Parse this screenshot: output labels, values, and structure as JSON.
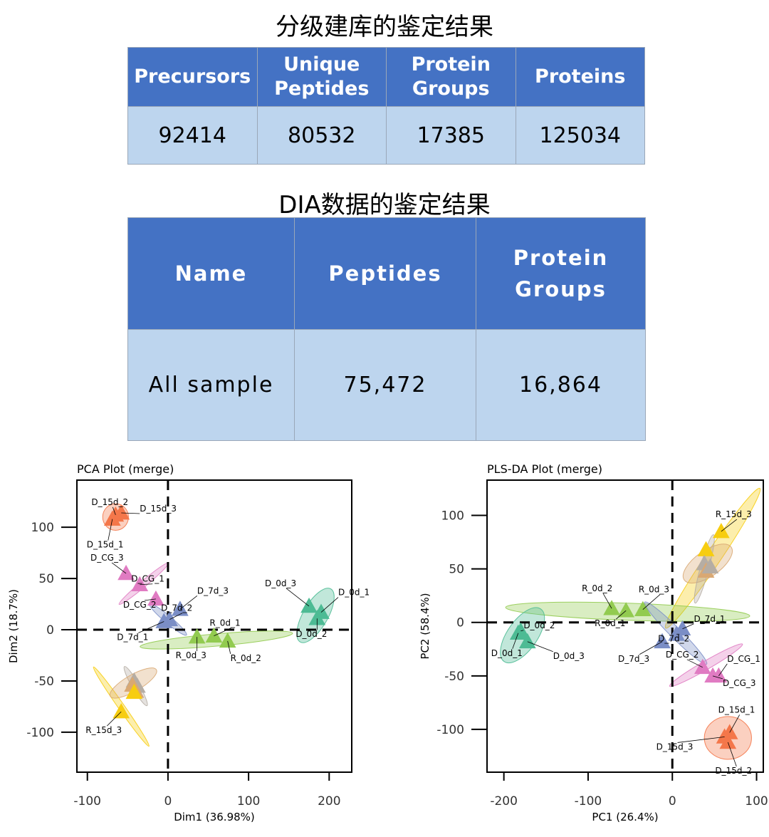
{
  "title1": "分级建库的鉴定结果",
  "table1": {
    "headers": [
      "Precursors",
      "Unique Peptides",
      "Protein Groups",
      "Proteins"
    ],
    "values": [
      "92414",
      "80532",
      "17385",
      "125034"
    ]
  },
  "title2": "DIA数据的鉴定结果",
  "table2": {
    "headers": [
      "Name",
      "Peptides",
      "Protein Groups"
    ],
    "values": [
      "All sample",
      "75,472",
      "16,864"
    ]
  },
  "colors": {
    "D_15d": "#f4774a",
    "D_CG": "#e07bc2",
    "D_7d": "#7b8ec6",
    "D_0d": "#4dbb94",
    "R_0d": "#92cb50",
    "R_15d": "#f7cd10",
    "R_7d": "#b5ada4",
    "R_CG": "#d9a873"
  },
  "chart_data": [
    {
      "type": "scatter",
      "title": "PCA Plot (merge)",
      "xlabel": "Dim1 (36.98%)",
      "ylabel": "Dim2 (18.7%)",
      "xlim": [
        -113,
        228
      ],
      "ylim": [
        -139,
        146
      ],
      "xticks": [
        -100,
        0,
        100,
        200
      ],
      "yticks": [
        100,
        50,
        0,
        -50,
        -100
      ],
      "marker": "triangle",
      "points": [
        {
          "label": "D_15d_2",
          "group": "D_15d",
          "x": -65,
          "y": 112
        },
        {
          "label": "D_15d_3",
          "group": "D_15d",
          "x": -58,
          "y": 114
        },
        {
          "label": "D_15d_1",
          "group": "D_15d",
          "x": -69,
          "y": 108
        },
        {
          "label": "D_CG_3",
          "group": "D_CG",
          "x": -52,
          "y": 55
        },
        {
          "label": "D_CG_1",
          "group": "D_CG",
          "x": -35,
          "y": 44
        },
        {
          "label": "D_CG_2",
          "group": "D_CG",
          "x": -15,
          "y": 30
        },
        {
          "label": "D_7d_3",
          "group": "D_7d",
          "x": 15,
          "y": 20
        },
        {
          "label": "D_7d_2",
          "group": "D_7d",
          "x": 2,
          "y": 10
        },
        {
          "label": "D_7d_1",
          "group": "D_7d",
          "x": -5,
          "y": 8
        },
        {
          "label": "D_0d_3",
          "group": "D_0d",
          "x": 175,
          "y": 23
        },
        {
          "label": "D_0d_1",
          "group": "D_0d",
          "x": 190,
          "y": 17
        },
        {
          "label": "D_0d_2",
          "group": "D_0d",
          "x": 185,
          "y": 11
        },
        {
          "label": "R_0d_1",
          "group": "R_0d",
          "x": 57,
          "y": -6
        },
        {
          "label": "R_0d_3",
          "group": "R_0d",
          "x": 36,
          "y": -7
        },
        {
          "label": "R_0d_2",
          "group": "R_0d",
          "x": 74,
          "y": -11
        },
        {
          "label": "",
          "group": "R_7d",
          "x": -42,
          "y": -50
        },
        {
          "label": "",
          "group": "R_7d",
          "x": -38,
          "y": -55
        },
        {
          "label": "",
          "group": "R_CG",
          "x": -44,
          "y": -54
        },
        {
          "label": "",
          "group": "R_CG",
          "x": -40,
          "y": -60
        },
        {
          "label": "",
          "group": "R_15d",
          "x": -42,
          "y": -61
        },
        {
          "label": "R_15d_3",
          "group": "R_15d",
          "x": -58,
          "y": -80
        }
      ],
      "ellipses": [
        {
          "group": "D_15d",
          "cx": -65,
          "cy": 110,
          "rx": 16,
          "ry": 13,
          "angle": 0
        },
        {
          "group": "D_CG",
          "cx": -30,
          "cy": 45,
          "rx": 40,
          "ry": 3,
          "angle": -40
        },
        {
          "group": "D_7d",
          "cx": 0,
          "cy": 10,
          "rx": 30,
          "ry": 3.5,
          "angle": 40
        },
        {
          "group": "D_0d",
          "cx": 183,
          "cy": 14,
          "rx": 38,
          "ry": 12,
          "angle": -60
        },
        {
          "group": "R_0d",
          "cx": 60,
          "cy": -10,
          "rx": 95,
          "ry": 6,
          "angle": -5
        },
        {
          "group": "R_15d",
          "cx": -58,
          "cy": -75,
          "rx": 60,
          "ry": 3,
          "angle": 55
        },
        {
          "group": "R_7d",
          "cx": -40,
          "cy": -55,
          "rx": 28,
          "ry": 3.5,
          "angle": 60
        },
        {
          "group": "R_CG",
          "cx": -43,
          "cy": -52,
          "rx": 33,
          "ry": 8,
          "angle": -30
        }
      ]
    },
    {
      "type": "scatter",
      "title": "PLS-DA Plot (merge)",
      "xlabel": "PC1 (26.4%)",
      "ylabel": "PC2 (58.4%)",
      "xlim": [
        -220,
        108
      ],
      "ylim": [
        -140,
        133
      ],
      "xticks": [
        -200,
        -100,
        0,
        100
      ],
      "yticks": [
        100,
        50,
        0,
        -50,
        -100
      ],
      "marker": "triangle",
      "points": [
        {
          "label": "R_15d_3",
          "group": "R_15d",
          "x": 58,
          "y": 85
        },
        {
          "label": "",
          "group": "R_15d",
          "x": 40,
          "y": 68
        },
        {
          "label": "",
          "group": "R_7d",
          "x": 38,
          "y": 55
        },
        {
          "label": "",
          "group": "R_CG",
          "x": 40,
          "y": 48
        },
        {
          "label": "",
          "group": "R_7d",
          "x": 45,
          "y": 52
        },
        {
          "label": "R_0d_2",
          "group": "R_0d",
          "x": -72,
          "y": 13
        },
        {
          "label": "R_0d_3",
          "group": "R_0d",
          "x": -35,
          "y": 12
        },
        {
          "label": "R_0d_1",
          "group": "R_0d",
          "x": -55,
          "y": 11
        },
        {
          "label": "D_0d_2",
          "group": "D_0d",
          "x": -180,
          "y": -8
        },
        {
          "label": "D_0d_1",
          "group": "D_0d",
          "x": -183,
          "y": -10
        },
        {
          "label": "D_0d_3",
          "group": "D_0d",
          "x": -172,
          "y": -18
        },
        {
          "label": "D_7d_1",
          "group": "D_7d",
          "x": 12,
          "y": -6
        },
        {
          "label": "D_7d_2",
          "group": "D_7d",
          "x": 5,
          "y": -11
        },
        {
          "label": "D_7d_3",
          "group": "D_7d",
          "x": -12,
          "y": -18
        },
        {
          "label": "D_CG_1",
          "group": "D_CG",
          "x": 55,
          "y": -50
        },
        {
          "label": "D_CG_2",
          "group": "D_CG",
          "x": 36,
          "y": -42
        },
        {
          "label": "D_CG_3",
          "group": "D_CG",
          "x": 48,
          "y": -50
        },
        {
          "label": "D_15d_1",
          "group": "D_15d",
          "x": 68,
          "y": -103
        },
        {
          "label": "D_15d_3",
          "group": "D_15d",
          "x": 62,
          "y": -107
        },
        {
          "label": "D_15d_2",
          "group": "D_15d",
          "x": 66,
          "y": -112
        }
      ],
      "ellipses": [
        {
          "group": "R_15d",
          "cx": 48,
          "cy": 60,
          "rx": 100,
          "ry": 7,
          "angle": -56
        },
        {
          "group": "R_CG",
          "cx": 42,
          "cy": 55,
          "rx": 34,
          "ry": 12,
          "angle": -35
        },
        {
          "group": "R_7d",
          "cx": 38,
          "cy": 50,
          "rx": 42,
          "ry": 4,
          "angle": -75
        },
        {
          "group": "R_0d",
          "cx": -53,
          "cy": 10,
          "rx": 145,
          "ry": 8,
          "angle": 2
        },
        {
          "group": "D_0d",
          "cx": -178,
          "cy": -12,
          "rx": 38,
          "ry": 14,
          "angle": -55
        },
        {
          "group": "D_7d",
          "cx": 4,
          "cy": -10,
          "rx": 52,
          "ry": 5,
          "angle": 45
        },
        {
          "group": "D_CG",
          "cx": 40,
          "cy": -40,
          "rx": 50,
          "ry": 4,
          "angle": -30
        },
        {
          "group": "D_15d",
          "cx": 66,
          "cy": -108,
          "rx": 28,
          "ry": 20,
          "angle": 0
        }
      ]
    }
  ]
}
